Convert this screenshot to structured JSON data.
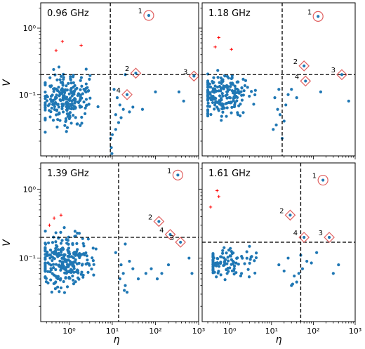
{
  "figure": {
    "xlabel": "η",
    "ylabel": "V"
  },
  "colors": {
    "points": "#1f77b4",
    "outliers": "#ff0000",
    "markers": "#e06060",
    "guides": "#000000"
  },
  "axes": {
    "x_ticks": [
      {
        "v": 1,
        "label": "10⁰"
      },
      {
        "v": 10,
        "label": "10¹"
      },
      {
        "v": 100,
        "label": "10²"
      },
      {
        "v": 1000,
        "label": "10³"
      }
    ],
    "y_ticks": [
      {
        "v": 1,
        "label": "10⁰"
      },
      {
        "v": 0.1,
        "label": "10⁻¹"
      }
    ],
    "xlim": [
      0.22,
      1000
    ],
    "ylim": [
      0.012,
      2.4
    ],
    "xscale": "log",
    "yscale": "log"
  },
  "chart_data": [
    {
      "type": "scatter",
      "title": "0.96 GHz",
      "vline": 9.0,
      "hline": 0.2,
      "highlighted": [
        {
          "label": "1",
          "x": 70,
          "y": 1.55,
          "marker": "circle"
        },
        {
          "label": "2",
          "x": 35,
          "y": 0.21,
          "marker": "diamond"
        },
        {
          "label": "3",
          "x": 780,
          "y": 0.19,
          "marker": "diamond"
        },
        {
          "label": "4",
          "x": 22,
          "y": 0.1,
          "marker": "diamond"
        }
      ],
      "outliers": [
        [
          0.5,
          0.46
        ],
        [
          0.7,
          0.63
        ],
        [
          1.9,
          0.55
        ]
      ],
      "cluster": {
        "count": 230,
        "seed": 11,
        "x_range": [
          0.28,
          9.0
        ],
        "y_range": [
          0.025,
          0.33
        ],
        "x_mode": 0.8,
        "y_mode": 0.085
      },
      "extra_points": [
        [
          12,
          0.05
        ],
        [
          14,
          0.038
        ],
        [
          10,
          0.025
        ],
        [
          9.5,
          0.016
        ],
        [
          9.2,
          0.022
        ],
        [
          11,
          0.12
        ],
        [
          15,
          0.07
        ],
        [
          13,
          0.09
        ],
        [
          18,
          0.06
        ],
        [
          25,
          0.055
        ],
        [
          30,
          0.065
        ],
        [
          50,
          0.06
        ],
        [
          100,
          0.11
        ],
        [
          350,
          0.11
        ],
        [
          450,
          0.08
        ],
        [
          20,
          0.2
        ],
        [
          9.8,
          0.013
        ],
        [
          16,
          0.045
        ],
        [
          12,
          0.03
        ]
      ]
    },
    {
      "type": "scatter",
      "title": "1.18 GHz",
      "vline": 18.0,
      "hline": 0.2,
      "highlighted": [
        {
          "label": "1",
          "x": 130,
          "y": 1.5,
          "marker": "circle"
        },
        {
          "label": "2",
          "x": 60,
          "y": 0.27,
          "marker": "diamond"
        },
        {
          "label": "3",
          "x": 480,
          "y": 0.2,
          "marker": "diamond"
        },
        {
          "label": "4",
          "x": 65,
          "y": 0.16,
          "marker": "diamond"
        }
      ],
      "outliers": [
        [
          0.45,
          0.52
        ],
        [
          0.55,
          0.72
        ],
        [
          1.1,
          0.48
        ]
      ],
      "cluster": {
        "count": 200,
        "seed": 23,
        "x_range": [
          0.3,
          10.0
        ],
        "y_range": [
          0.03,
          0.24
        ],
        "x_mode": 0.7,
        "y_mode": 0.1
      },
      "extra_points": [
        [
          12,
          0.09
        ],
        [
          14,
          0.06
        ],
        [
          16,
          0.05
        ],
        [
          20,
          0.04
        ],
        [
          22,
          0.07
        ],
        [
          25,
          0.1
        ],
        [
          30,
          0.12
        ],
        [
          40,
          0.09
        ],
        [
          18,
          0.022
        ],
        [
          11,
          0.03
        ],
        [
          150,
          0.11
        ],
        [
          700,
          0.08
        ],
        [
          15,
          0.12
        ],
        [
          13,
          0.035
        ]
      ]
    },
    {
      "type": "scatter",
      "title": "1.39 GHz",
      "vline": 14.0,
      "hline": 0.2,
      "highlighted": [
        {
          "label": "1",
          "x": 330,
          "y": 1.6,
          "marker": "circle"
        },
        {
          "label": "2",
          "x": 120,
          "y": 0.34,
          "marker": "diamond"
        },
        {
          "label": "3",
          "x": 380,
          "y": 0.17,
          "marker": "diamond"
        },
        {
          "label": "4",
          "x": 220,
          "y": 0.22,
          "marker": "diamond"
        }
      ],
      "outliers": [
        [
          0.35,
          0.3
        ],
        [
          0.45,
          0.38
        ],
        [
          0.65,
          0.42
        ]
      ],
      "cluster": {
        "count": 250,
        "seed": 37,
        "x_range": [
          0.28,
          12.0
        ],
        "y_range": [
          0.03,
          0.38
        ],
        "x_mode": 0.8,
        "y_mode": 0.09
      },
      "extra_points": [
        [
          15,
          0.05
        ],
        [
          16,
          0.08
        ],
        [
          18,
          0.06
        ],
        [
          20,
          0.04
        ],
        [
          22,
          0.032
        ],
        [
          25,
          0.09
        ],
        [
          30,
          0.07
        ],
        [
          40,
          0.05
        ],
        [
          60,
          0.06
        ],
        [
          80,
          0.07
        ],
        [
          110,
          0.05
        ],
        [
          140,
          0.06
        ],
        [
          200,
          0.08
        ],
        [
          600,
          0.1
        ],
        [
          700,
          0.06
        ],
        [
          12,
          0.12
        ],
        [
          20,
          0.16
        ],
        [
          19,
          0.034
        ]
      ]
    },
    {
      "type": "scatter",
      "title": "1.61 GHz",
      "vline": 50.0,
      "hline": 0.17,
      "highlighted": [
        {
          "label": "1",
          "x": 170,
          "y": 1.35,
          "marker": "circle"
        },
        {
          "label": "2",
          "x": 28,
          "y": 0.42,
          "marker": "diamond"
        },
        {
          "label": "3",
          "x": 240,
          "y": 0.2,
          "marker": "diamond"
        },
        {
          "label": "4",
          "x": 60,
          "y": 0.2,
          "marker": "diamond"
        }
      ],
      "outliers": [
        [
          0.35,
          0.55
        ],
        [
          0.5,
          0.95
        ],
        [
          0.55,
          0.78
        ]
      ],
      "cluster": {
        "count": 100,
        "seed": 53,
        "x_range": [
          0.4,
          30.0
        ],
        "y_range": [
          0.045,
          0.18
        ],
        "x_mode": 0.8,
        "y_mode": 0.09
      },
      "extra_points": [
        [
          35,
          0.055
        ],
        [
          40,
          0.045
        ],
        [
          45,
          0.06
        ],
        [
          55,
          0.07
        ],
        [
          70,
          0.09
        ],
        [
          90,
          0.085
        ],
        [
          120,
          0.12
        ],
        [
          30,
          0.04
        ],
        [
          32,
          0.042
        ],
        [
          50,
          0.11
        ],
        [
          20,
          0.065
        ],
        [
          15,
          0.08
        ],
        [
          400,
          0.08
        ],
        [
          300,
          0.06
        ],
        [
          25,
          0.1
        ]
      ]
    }
  ]
}
